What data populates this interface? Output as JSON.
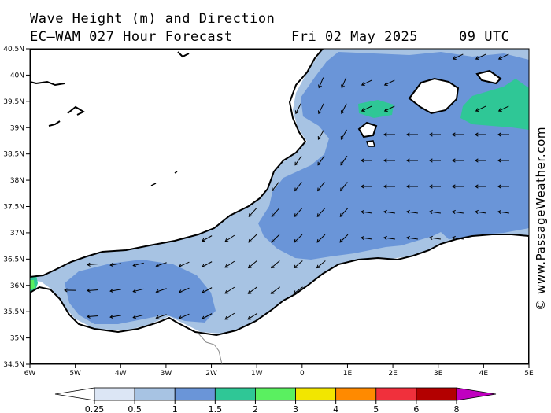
{
  "header": {
    "line1": "Wave Height (m) and Direction",
    "line2_left": "EC—WAM 027 Hour Forecast",
    "line2_date": "Fri 02 May 2025",
    "line2_time": "09 UTC"
  },
  "watermark": "© www.PassageWeather.com",
  "axes": {
    "lat_labels": [
      "40.5N",
      "40N",
      "39.5N",
      "39N",
      "38.5N",
      "38N",
      "37.5N",
      "37N",
      "36.5N",
      "36N",
      "35.5N",
      "35N",
      "34.5N"
    ],
    "lon_labels": [
      "6W",
      "5W",
      "4W",
      "3W",
      "2W",
      "1W",
      "0",
      "1E",
      "2E",
      "3E",
      "4E",
      "5E"
    ]
  },
  "legend": {
    "levels": [
      "0.25",
      "0.5",
      "1",
      "1.5",
      "2",
      "3",
      "4",
      "5",
      "6",
      "8"
    ],
    "colors": [
      "#ffffff",
      "#dce6f5",
      "#a7c3e3",
      "#6a95d8",
      "#2fc796",
      "#5af060",
      "#f2e600",
      "#ff8a00",
      "#f0303c",
      "#b30000",
      "#c000c0"
    ]
  },
  "colors": {
    "land": "#ffffff",
    "sea_low": "#a7c3e3",
    "sea_mid": "#6a95d8",
    "sea_high": "#2fc796"
  }
}
